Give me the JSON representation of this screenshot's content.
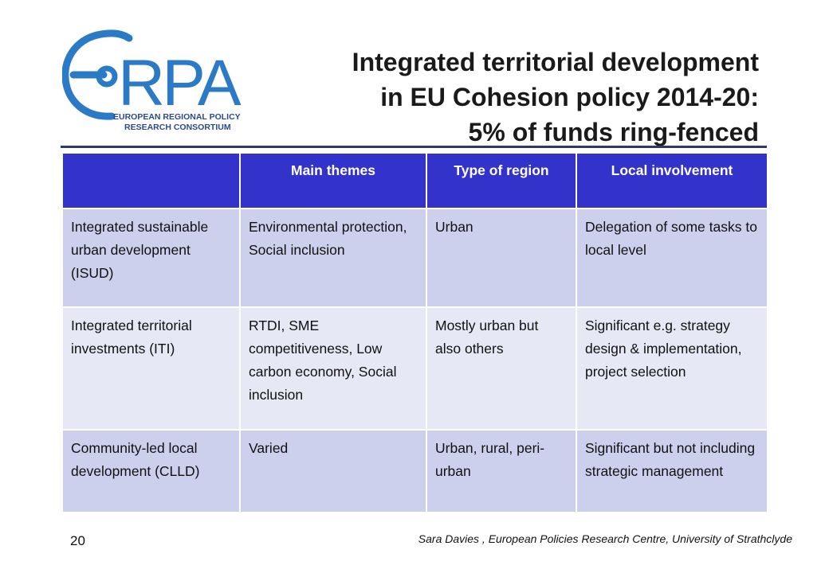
{
  "logo": {
    "wordmark": "EoRPA",
    "tagline_line1": "EUROPEAN REGIONAL POLICY",
    "tagline_line2": "RESEARCH CONSORTIUM",
    "color": "#2b7ac6"
  },
  "title": {
    "line1": "Integrated territorial development",
    "line2": "in EU Cohesion policy 2014-20:",
    "line3": "5% of funds ring-fenced"
  },
  "table": {
    "headers": [
      "",
      "Main themes",
      "Type of region",
      "Local involvement"
    ],
    "rows": [
      [
        "Integrated sustainable urban development (ISUD)",
        "Environmental protection, Social inclusion",
        "Urban",
        "Delegation of some tasks to local level"
      ],
      [
        "Integrated territorial investments (ITI)",
        "RTDI, SME competitiveness, Low carbon economy, Social inclusion",
        "Mostly urban but also others",
        "Significant e.g. strategy design & implementation, project selection"
      ],
      [
        "Community-led local development (CLLD)",
        "Varied",
        "Urban, rural, peri-urban",
        "Significant but not including strategic management"
      ]
    ],
    "header_color": "#3333cc",
    "row_colors": [
      "#cdd0ec",
      "#e7e8f5"
    ]
  },
  "footer": {
    "page_number": "20",
    "credit": "Sara Davies , European Policies Research Centre, University of Strathclyde"
  }
}
